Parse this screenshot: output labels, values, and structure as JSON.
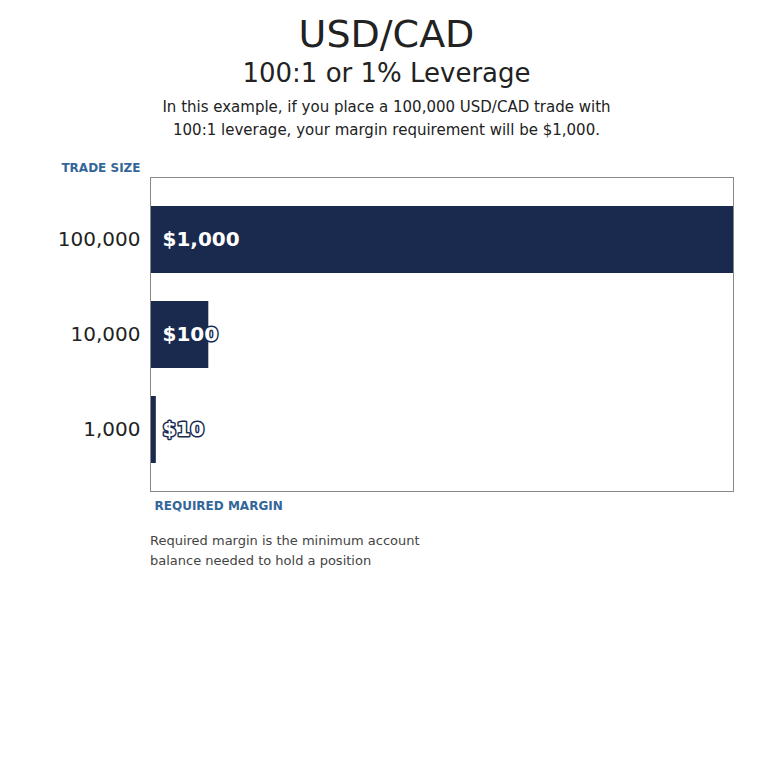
{
  "chart_data": {
    "type": "bar",
    "orientation": "horizontal",
    "title": "USD/CAD",
    "subtitle": "100:1 or 1% Leverage",
    "annotations": [
      "In this example, if you place a 100,000 USD/CAD trade with\n100:1 leverage, your margin requirement will be $1,000.",
      "Required margin is the minimum account\nbalance needed to hold a position"
    ],
    "y_label": "TRADE SIZE",
    "x_label": "REQUIRED MARGIN",
    "categories": [
      "100,000",
      "10,000",
      "1,000"
    ],
    "values": [
      1000,
      100,
      10
    ],
    "value_labels": [
      "$1,000",
      "$100",
      "$10"
    ],
    "data_labels": true,
    "color": "#1a2a4e",
    "xlim": [
      0,
      1000
    ],
    "tick_labels": "y",
    "grid": false
  }
}
